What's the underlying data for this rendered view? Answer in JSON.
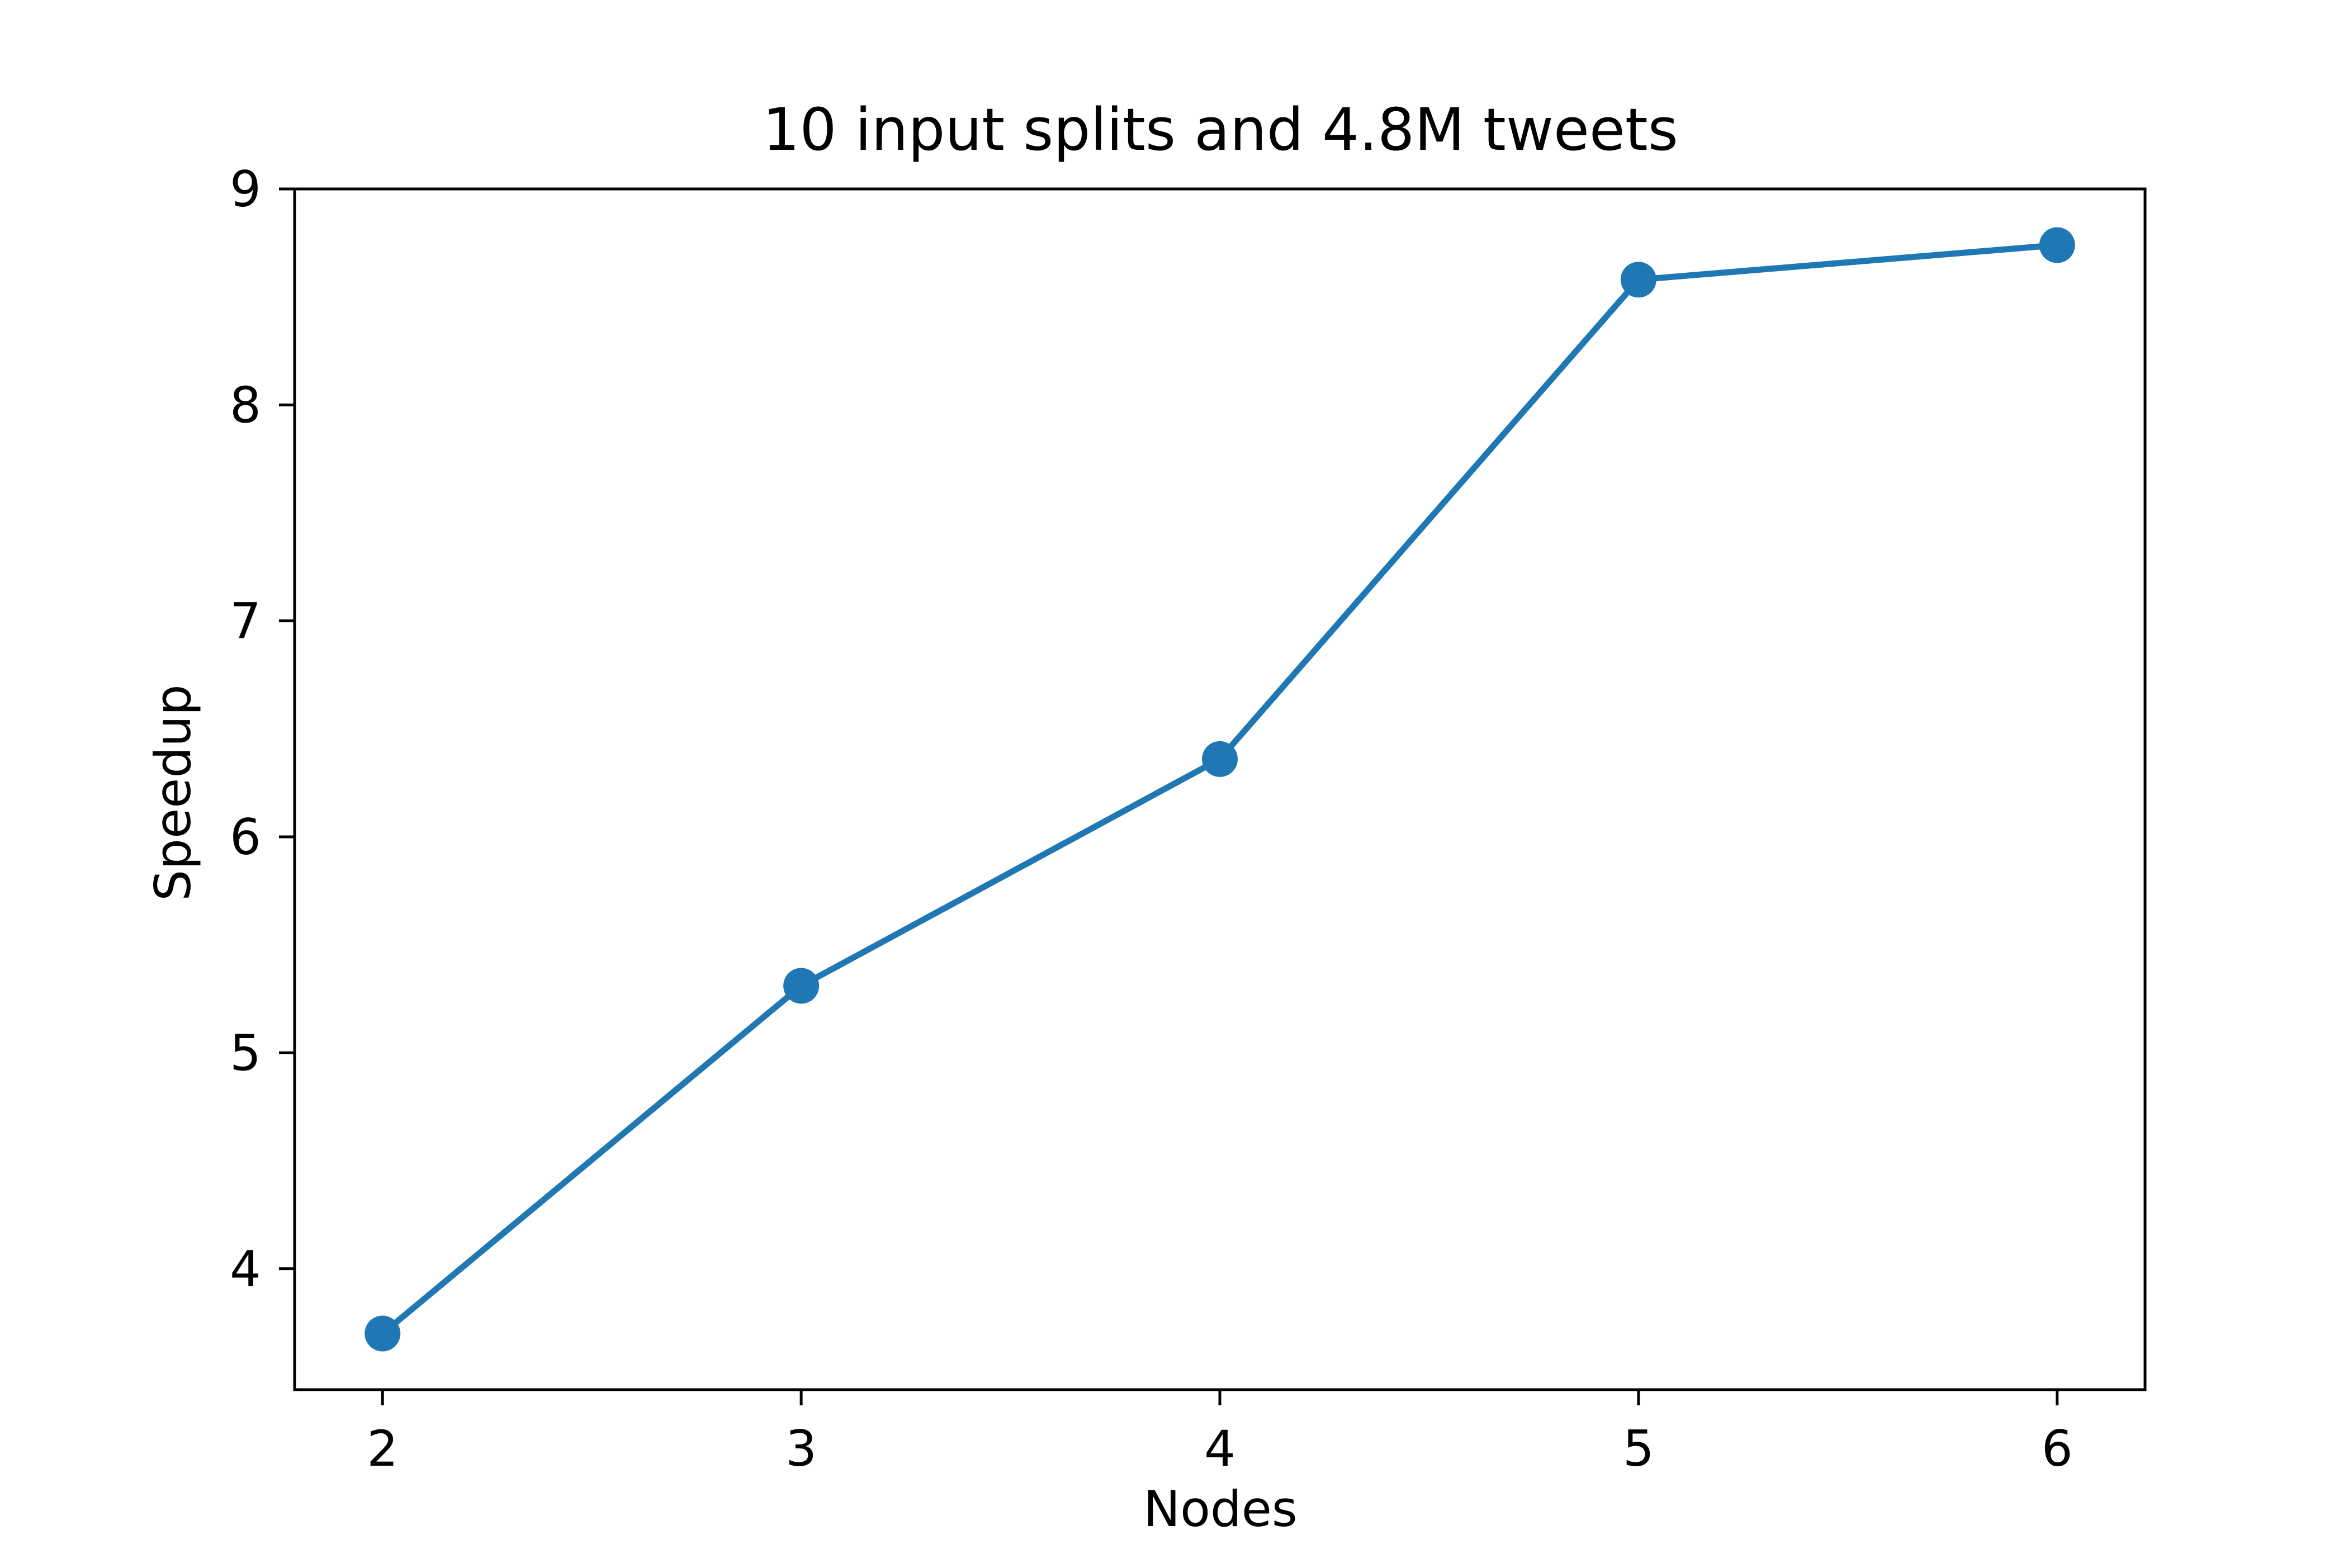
{
  "chart_data": {
    "type": "line",
    "title": "10 input splits and 4.8M tweets",
    "xlabel": "Nodes",
    "ylabel": "Speedup",
    "x": [
      2,
      3,
      4,
      5,
      6
    ],
    "series": [
      {
        "values": [
          3.7,
          5.31,
          6.36,
          8.58,
          8.74
        ],
        "color": "#1f77b4",
        "marker": "circle"
      }
    ],
    "xlim": [
      1.79,
      6.21
    ],
    "ylim": [
      3.44,
      9.0
    ],
    "xticks": [
      "2",
      "3",
      "4",
      "5",
      "6"
    ],
    "yticks": [
      "4",
      "5",
      "6",
      "7",
      "8",
      "9"
    ],
    "grid": false,
    "legend": "none"
  }
}
